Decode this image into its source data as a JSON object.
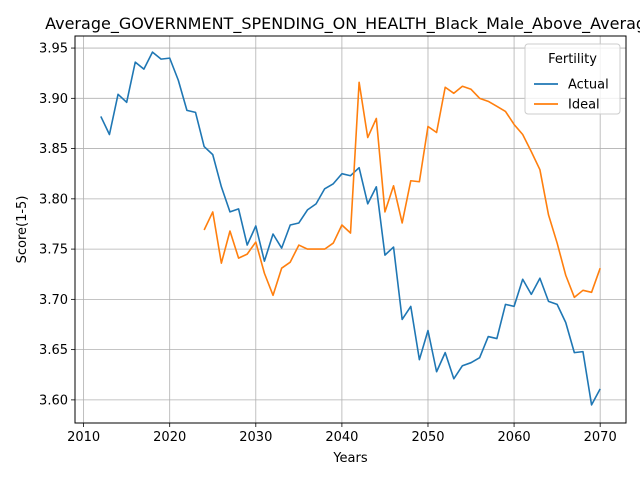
{
  "chart_data": {
    "type": "line",
    "title": "Average_GOVERNMENT_SPENDING_ON_HEALTH_Black_Male_Above_Average",
    "xlabel": "Years",
    "ylabel": "Score(1-5)",
    "xlim": [
      2009,
      2073
    ],
    "ylim": [
      3.577,
      3.962
    ],
    "xticks": [
      2010,
      2020,
      2030,
      2040,
      2050,
      2060,
      2070
    ],
    "yticks": [
      3.6,
      3.65,
      3.7,
      3.75,
      3.8,
      3.85,
      3.9,
      3.95
    ],
    "xtick_labels": [
      "2010",
      "2020",
      "2030",
      "2040",
      "2050",
      "2060",
      "2070"
    ],
    "ytick_labels": [
      "3.60",
      "3.65",
      "3.70",
      "3.75",
      "3.80",
      "3.85",
      "3.90",
      "3.95"
    ],
    "grid": true,
    "legend": {
      "title": "Fertility",
      "placement": "top-right"
    },
    "series": [
      {
        "name": "Actual",
        "color": "#1f77b4",
        "x": [
          2012,
          2013,
          2014,
          2015,
          2016,
          2017,
          2018,
          2019,
          2020,
          2021,
          2022,
          2023,
          2024,
          2025,
          2026,
          2027,
          2028,
          2029,
          2030,
          2031,
          2032,
          2033,
          2034,
          2035,
          2036,
          2037,
          2038,
          2039,
          2040,
          2041,
          2042,
          2043,
          2044,
          2045,
          2046,
          2047,
          2048,
          2049,
          2050,
          2051,
          2052,
          2053,
          2054,
          2055,
          2056,
          2057,
          2058,
          2059,
          2060,
          2061,
          2062,
          2063,
          2064,
          2065,
          2066,
          2067,
          2068,
          2069,
          2070
        ],
        "y": [
          3.882,
          3.864,
          3.904,
          3.896,
          3.936,
          3.929,
          3.946,
          3.939,
          3.94,
          3.918,
          3.888,
          3.886,
          3.852,
          3.844,
          3.812,
          3.787,
          3.79,
          3.754,
          3.773,
          3.738,
          3.765,
          3.751,
          3.774,
          3.776,
          3.789,
          3.795,
          3.81,
          3.815,
          3.825,
          3.823,
          3.831,
          3.795,
          3.812,
          3.744,
          3.752,
          3.68,
          3.693,
          3.64,
          3.669,
          3.628,
          3.647,
          3.621,
          3.634,
          3.637,
          3.642,
          3.663,
          3.661,
          3.695,
          3.693,
          3.72,
          3.705,
          3.721,
          3.698,
          3.695,
          3.677,
          3.647,
          3.648,
          3.595,
          3.611
        ]
      },
      {
        "name": "Ideal",
        "color": "#ff7f0e",
        "x": [
          2024,
          2025,
          2026,
          2027,
          2028,
          2029,
          2030,
          2031,
          2032,
          2033,
          2034,
          2035,
          2036,
          2037,
          2038,
          2039,
          2040,
          2041,
          2042,
          2043,
          2044,
          2045,
          2046,
          2047,
          2048,
          2049,
          2050,
          2051,
          2052,
          2053,
          2054,
          2055,
          2056,
          2057,
          2058,
          2059,
          2060,
          2061,
          2062,
          2063,
          2064,
          2065,
          2066,
          2067,
          2068,
          2069,
          2070
        ],
        "y": [
          3.769,
          3.787,
          3.736,
          3.768,
          3.741,
          3.745,
          3.757,
          3.726,
          3.704,
          3.731,
          3.737,
          3.754,
          3.75,
          3.75,
          3.75,
          3.756,
          3.774,
          3.766,
          3.916,
          3.861,
          3.88,
          3.787,
          3.813,
          3.776,
          3.818,
          3.817,
          3.872,
          3.866,
          3.911,
          3.905,
          3.912,
          3.909,
          3.9,
          3.897,
          3.892,
          3.887,
          3.874,
          3.864,
          3.847,
          3.829,
          3.784,
          3.756,
          3.724,
          3.702,
          3.709,
          3.707,
          3.731
        ]
      }
    ]
  }
}
